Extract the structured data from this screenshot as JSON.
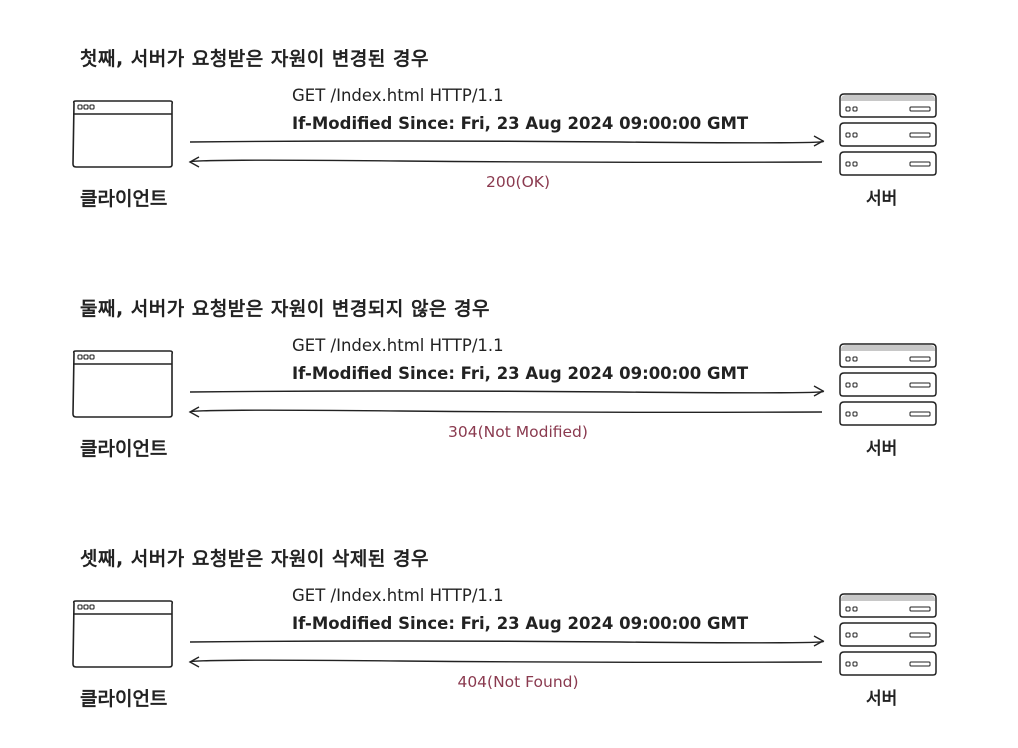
{
  "colors": {
    "ink": "#222222",
    "response_text": "#8a3a4f",
    "server_top": "#c8c8c8"
  },
  "scenarios": [
    {
      "heading": "첫째, 서버가 요청받은 자원이 변경된 경우",
      "request_line1": "GET /Index.html HTTP/1.1",
      "request_line2": "If-Modified Since: Fri, 23 Aug 2024 09:00:00 GMT",
      "response": "200(OK)",
      "client_label": "클라이언트",
      "server_label": "서버"
    },
    {
      "heading": "둘째, 서버가 요청받은 자원이 변경되지 않은 경우",
      "request_line1": "GET /Index.html HTTP/1.1",
      "request_line2": "If-Modified Since: Fri, 23 Aug 2024 09:00:00 GMT",
      "response": "304(Not Modified)",
      "client_label": "클라이언트",
      "server_label": "서버"
    },
    {
      "heading": "셋째, 서버가 요청받은 자원이 삭제된 경우",
      "request_line1": "GET /Index.html HTTP/1.1",
      "request_line2": "If-Modified Since: Fri, 23 Aug 2024 09:00:00 GMT",
      "response": "404(Not Found)",
      "client_label": "클라이언트",
      "server_label": "서버"
    }
  ]
}
